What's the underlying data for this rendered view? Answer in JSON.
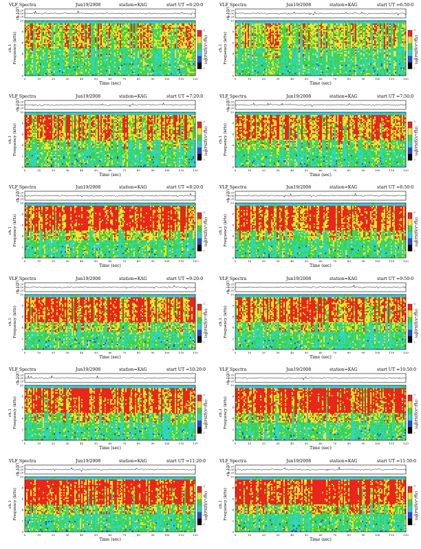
{
  "page": {
    "header_title": "VLF Spectra",
    "station": "station=KAG",
    "ch_axis_label": "ch.1(V)",
    "ch_ticks": [
      "0.20",
      "0.00",
      "-0.20"
    ],
    "freq_axis_label": "Frequency (kHz)",
    "freq_channel_label": "ch.1",
    "time_axis_label": "Time (sec)",
    "colorbar_label": "log(PSD)(V²/Hz)",
    "colorbar_ticks": [
      "-3",
      "-4",
      "-5",
      "-6",
      "-7"
    ]
  },
  "chart_data": {
    "type": "heatmap",
    "description_units": "VLF spectrogram panels, frequency 0-10 kHz vs time 0-120 s",
    "xlim": [
      0,
      120
    ],
    "ylim": [
      0,
      10
    ],
    "x_ticks": [
      0,
      10,
      20,
      30,
      40,
      50,
      60,
      70,
      80,
      90,
      100,
      110,
      120
    ],
    "y_ticks": [
      0,
      2,
      4,
      6,
      8,
      10
    ],
    "colorbar_range": [
      -7,
      -3
    ],
    "colors": {
      "high": "#e8261c",
      "mid_high": "#f6e42a",
      "mid": "#3ed33c",
      "low": "#2fd6c8",
      "lowest": "#2a4bd8",
      "band_top": "#38c6e6"
    },
    "panels": [
      {
        "date": "Jun19/2008",
        "start": "start UT =6:20:0",
        "red_intensity": 0.55
      },
      {
        "date": "Jun19/2008",
        "start": "start UT =6:50:0",
        "red_intensity": 0.55
      },
      {
        "date": "Jun19/2008",
        "start": "start UT =7:20:0",
        "red_intensity": 0.65
      },
      {
        "date": "Jun19/2008",
        "start": "start UT =7:50:0",
        "red_intensity": 0.7
      },
      {
        "date": "Jun19/2008",
        "start": "start UT =8:20:0",
        "red_intensity": 0.8
      },
      {
        "date": "Jun19/2008",
        "start": "start UT =8:50:0",
        "red_intensity": 0.8
      },
      {
        "date": "Jun19/2008",
        "start": "start UT =9:20:0",
        "red_intensity": 0.75
      },
      {
        "date": "Jun19/2008",
        "start": "start UT =9:50:0",
        "red_intensity": 0.75
      },
      {
        "date": "Jun19/2008",
        "start": "start UT =10:20:0",
        "red_intensity": 0.8
      },
      {
        "date": "Jun19/2008",
        "start": "start UT =10:50:0",
        "red_intensity": 0.8
      },
      {
        "date": "Jun19/2008",
        "start": "start UT =11:20:0",
        "red_intensity": 0.85
      },
      {
        "date": "Jun19/2008",
        "start": "start UT =11:50:0",
        "red_intensity": 0.85
      }
    ]
  }
}
